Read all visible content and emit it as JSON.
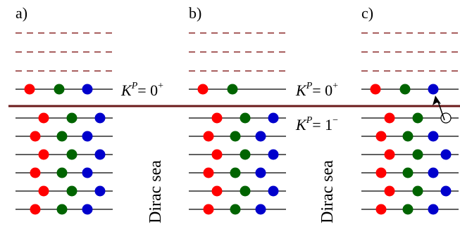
{
  "panels": [
    {
      "label": "a)",
      "empty_levels": 3,
      "top_level": [
        "red",
        "green",
        "blue"
      ],
      "sea_levels": [
        [
          "red",
          "green",
          "blue"
        ],
        [
          "red",
          "green",
          "blue"
        ],
        [
          "red",
          "green",
          "blue"
        ],
        [
          "red",
          "green",
          "blue"
        ],
        [
          "red",
          "green",
          "blue"
        ],
        [
          "red",
          "green",
          "blue"
        ]
      ]
    },
    {
      "label": "b)",
      "empty_levels": 3,
      "top_level": [
        "red",
        "green"
      ],
      "sea_levels": [
        [
          "red",
          "green",
          "blue"
        ],
        [
          "red",
          "green",
          "blue"
        ],
        [
          "red",
          "green",
          "blue"
        ],
        [
          "red",
          "green",
          "blue"
        ],
        [
          "red",
          "green",
          "blue"
        ],
        [
          "red",
          "green",
          "blue"
        ]
      ]
    },
    {
      "label": "c)",
      "empty_levels": 3,
      "top_level": [
        "red",
        "green",
        "blue"
      ],
      "sea_levels": [
        [
          "red",
          "green",
          "hole"
        ],
        [
          "red",
          "green",
          "blue"
        ],
        [
          "red",
          "green",
          "blue"
        ],
        [
          "red",
          "green",
          "blue"
        ],
        [
          "red",
          "green",
          "blue"
        ],
        [
          "red",
          "green",
          "blue"
        ]
      ],
      "arrow": "blue quark excited from the K^P=1^- sea level to the K^P=0^+ level"
    }
  ],
  "level_labels": {
    "upper_a": {
      "base": "K",
      "sup": "P",
      "value": "= 0",
      "value_sup": "+"
    },
    "upper_b": {
      "base": "K",
      "sup": "P",
      "value": "= 0",
      "value_sup": "+"
    },
    "lower_b": {
      "base": "K",
      "sup": "P",
      "value": "= 1",
      "value_sup": "−"
    }
  },
  "sea_label": "Dirac sea",
  "colors": {
    "red": "#ff0000",
    "green": "#006400",
    "blue": "#0000cc",
    "dashed": "#8b2a2a",
    "divider": "#6b1a1a",
    "line": "#000000"
  }
}
